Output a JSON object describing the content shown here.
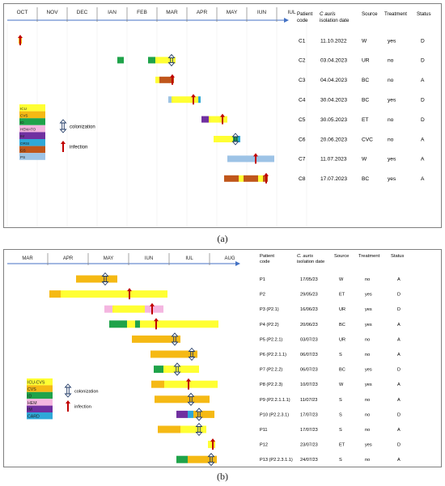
{
  "panels": [
    {
      "label": "(a)",
      "months": [
        "OCT",
        "NOV",
        "DEC",
        "IAN",
        "FEB",
        "MAR",
        "APR",
        "MAY",
        "IUN",
        "IUL"
      ],
      "headers": {
        "code": [
          "Patient",
          "code"
        ],
        "date_italic": "C auris",
        "date_rest": "isolation date",
        "source": "Source",
        "treatment": "Treatment",
        "status": "Status"
      },
      "legend": [
        {
          "label": "ICU",
          "color": "#ffff33"
        },
        {
          "label": "CVS",
          "color": "#f5b914"
        },
        {
          "label": "ID",
          "color": "#1fa34a"
        },
        {
          "label": "HEMATO",
          "color": "#f4b6e0"
        },
        {
          "label": "IM",
          "color": "#7030a0"
        },
        {
          "label": "ORSI",
          "color": "#2fa8d8"
        },
        {
          "label": "GS",
          "color": "#c0561b"
        },
        {
          "label": "PS",
          "color": "#9dc3e6"
        }
      ],
      "colonization_label": "colonization",
      "infection_label": "infection",
      "rows": [
        {
          "code": "C1",
          "date": "11.10.2022",
          "source": "W",
          "treatment": "yes",
          "status": "D"
        },
        {
          "code": "C2",
          "date": "03.04.2023",
          "source": "UR",
          "treatment": "no",
          "status": "D"
        },
        {
          "code": "C3",
          "date": "04.04.2023",
          "source": "BC",
          "treatment": "no",
          "status": "A"
        },
        {
          "code": "C4",
          "date": "30.04.2023",
          "source": "BC",
          "treatment": "yes",
          "status": "D"
        },
        {
          "code": "C5",
          "date": "30.05.2023",
          "source": "ET",
          "treatment": "no",
          "status": "D"
        },
        {
          "code": "C6",
          "date": "20.06.2023",
          "source": "CVC",
          "treatment": "no",
          "status": "A"
        },
        {
          "code": "C7",
          "date": "11.07.2023",
          "source": "W",
          "treatment": "yes",
          "status": "A"
        },
        {
          "code": "C8",
          "date": "17.07.2023",
          "source": "BC",
          "treatment": "yes",
          "status": "A"
        }
      ]
    },
    {
      "label": "(b)",
      "months": [
        "MAR",
        "APR",
        "MAY",
        "IUN",
        "IUL",
        "AUG"
      ],
      "headers": {
        "code": [
          "Patient",
          "code"
        ],
        "date_italic": "C. auris",
        "date_rest": "isolation date",
        "source": "Source",
        "treatment": "Treatment",
        "status": "Status"
      },
      "legend": [
        {
          "label": "ICU-CVS",
          "color": "#ffff33"
        },
        {
          "label": "CVS",
          "color": "#f5b914"
        },
        {
          "label": "ID",
          "color": "#1fa34a"
        },
        {
          "label": "HEM",
          "color": "#f4b6e0"
        },
        {
          "label": "IM",
          "color": "#7030a0"
        },
        {
          "label": "CARD",
          "color": "#2fa8d8"
        }
      ],
      "colonization_label": "colonization",
      "infection_label": "infection",
      "rows": [
        {
          "code": "P1",
          "date": "17/05/23",
          "source": "W",
          "treatment": "no",
          "status": "A"
        },
        {
          "code": "P2",
          "date": "29/05/23",
          "source": "ET",
          "treatment": "yes",
          "status": "D"
        },
        {
          "code": "P3 (P2.1)",
          "date": "16/06/23",
          "source": "UR",
          "treatment": "yes",
          "status": "D"
        },
        {
          "code": "P4 (P2.2)",
          "date": "20/06/23",
          "source": "BC",
          "treatment": "yes",
          "status": "A"
        },
        {
          "code": "P5 (P2.2.1)",
          "date": "03/07/23",
          "source": "UR",
          "treatment": "no",
          "status": "A"
        },
        {
          "code": "P6 (P2.2.1.1)",
          "date": "06/07/23",
          "source": "S",
          "treatment": "no",
          "status": "A"
        },
        {
          "code": "P7 (P2.2.2)",
          "date": "06/07/23",
          "source": "BC",
          "treatment": "yes",
          "status": "D"
        },
        {
          "code": "P8 (P2.2.3)",
          "date": "10/07/23",
          "source": "W",
          "treatment": "yes",
          "status": "A"
        },
        {
          "code": "P9 (P2.2.1.1.1)",
          "date": "11/07/23",
          "source": "S",
          "treatment": "no",
          "status": "A"
        },
        {
          "code": "P10 (P2.2.3.1)",
          "date": "17/07/23",
          "source": "S",
          "treatment": "no",
          "status": "D"
        },
        {
          "code": "P11",
          "date": "17/07/23",
          "source": "S",
          "treatment": "no",
          "status": "A"
        },
        {
          "code": "P12",
          "date": "23/07/23",
          "source": "ET",
          "treatment": "yes",
          "status": "D"
        },
        {
          "code": "P13 (P2.2.3.1.1)",
          "date": "24/07/23",
          "source": "S",
          "treatment": "no",
          "status": "A"
        }
      ]
    }
  ]
}
